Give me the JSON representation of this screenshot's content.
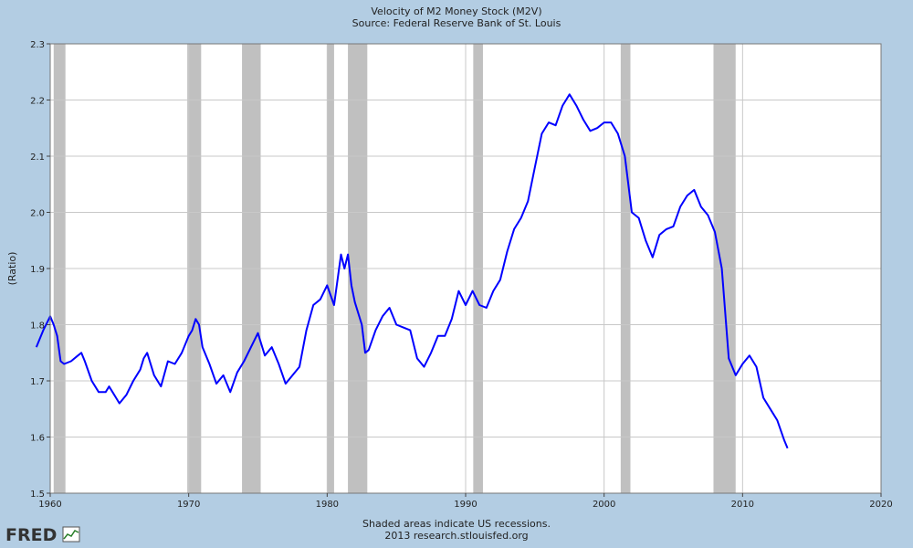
{
  "colors": {
    "background": "#b3cde3",
    "plot_background": "#ffffff",
    "line": "#0000ff",
    "recession": "#c0c0c0",
    "grid": "#c8c8c8"
  },
  "chart_data": {
    "type": "line",
    "title": "Velocity of M2 Money Stock (M2V)",
    "subtitle": "Source: Federal Reserve Bank of St. Louis",
    "ylabel": "(Ratio)",
    "xlabel": "",
    "xlim": [
      1960,
      2020
    ],
    "ylim": [
      1.5,
      2.3
    ],
    "x_ticks": [
      1960,
      1970,
      1980,
      1990,
      2000,
      2010,
      2020
    ],
    "y_ticks": [
      1.5,
      1.6,
      1.7,
      1.8,
      1.9,
      2.0,
      2.1,
      2.2,
      2.3
    ],
    "y_tick_labels": [
      "1.5",
      "1.6",
      "1.7",
      "1.8",
      "1.9",
      "2.0",
      "2.1",
      "2.2",
      "2.3"
    ],
    "grid": true,
    "recessions": [
      [
        1960.25,
        1961.1
      ],
      [
        1969.9,
        1970.9
      ],
      [
        1973.85,
        1975.2
      ],
      [
        1980.0,
        1980.5
      ],
      [
        1981.5,
        1982.9
      ],
      [
        1990.55,
        1991.25
      ],
      [
        2001.2,
        2001.9
      ],
      [
        2007.9,
        2009.5
      ]
    ],
    "series": [
      {
        "x": [
          1959.0,
          1959.5,
          1960.0,
          1960.25,
          1960.5,
          1960.75,
          1961.0,
          1961.5,
          1962.0,
          1962.25,
          1962.5,
          1963.0,
          1963.5,
          1964.0,
          1964.25,
          1964.5,
          1965.0,
          1965.5,
          1966.0,
          1966.5,
          1966.75,
          1967.0,
          1967.5,
          1968.0,
          1968.5,
          1969.0,
          1969.5,
          1970.0,
          1970.25,
          1970.5,
          1970.75,
          1971.0,
          1971.5,
          1972.0,
          1972.5,
          1973.0,
          1973.5,
          1974.0,
          1974.5,
          1975.0,
          1975.5,
          1976.0,
          1976.5,
          1977.0,
          1977.5,
          1978.0,
          1978.5,
          1979.0,
          1979.5,
          1980.0,
          1980.5,
          1981.0,
          1981.25,
          1981.5,
          1981.75,
          1982.0,
          1982.5,
          1982.75,
          1983.0,
          1983.5,
          1984.0,
          1984.5,
          1985.0,
          1985.5,
          1986.0,
          1986.5,
          1987.0,
          1987.5,
          1988.0,
          1988.5,
          1989.0,
          1989.5,
          1990.0,
          1990.5,
          1991.0,
          1991.5,
          1992.0,
          1992.5,
          1993.0,
          1993.5,
          1994.0,
          1994.5,
          1995.0,
          1995.5,
          1996.0,
          1996.5,
          1997.0,
          1997.25,
          1997.5,
          1998.0,
          1998.5,
          1999.0,
          1999.5,
          2000.0,
          2000.5,
          2001.0,
          2001.5,
          2002.0,
          2002.5,
          2003.0,
          2003.5,
          2004.0,
          2004.5,
          2005.0,
          2005.5,
          2006.0,
          2006.5,
          2007.0,
          2007.5,
          2008.0,
          2008.5,
          2009.0,
          2009.5,
          2010.0,
          2010.5,
          2011.0,
          2011.5,
          2012.0,
          2012.5,
          2013.0,
          2013.25
        ],
        "y": [
          1.76,
          1.79,
          1.815,
          1.8,
          1.78,
          1.735,
          1.73,
          1.735,
          1.745,
          1.75,
          1.735,
          1.7,
          1.68,
          1.68,
          1.69,
          1.68,
          1.66,
          1.675,
          1.7,
          1.72,
          1.74,
          1.75,
          1.71,
          1.69,
          1.735,
          1.73,
          1.75,
          1.78,
          1.79,
          1.81,
          1.8,
          1.76,
          1.73,
          1.695,
          1.71,
          1.68,
          1.715,
          1.735,
          1.76,
          1.785,
          1.745,
          1.76,
          1.73,
          1.695,
          1.71,
          1.725,
          1.79,
          1.835,
          1.845,
          1.87,
          1.835,
          1.925,
          1.9,
          1.925,
          1.87,
          1.84,
          1.8,
          1.75,
          1.755,
          1.79,
          1.815,
          1.83,
          1.8,
          1.795,
          1.79,
          1.74,
          1.725,
          1.75,
          1.78,
          1.78,
          1.81,
          1.86,
          1.835,
          1.86,
          1.835,
          1.83,
          1.86,
          1.88,
          1.93,
          1.97,
          1.99,
          2.02,
          2.08,
          2.14,
          2.16,
          2.155,
          2.19,
          2.2,
          2.21,
          2.19,
          2.165,
          2.145,
          2.15,
          2.16,
          2.16,
          2.14,
          2.1,
          2.0,
          1.99,
          1.95,
          1.92,
          1.96,
          1.97,
          1.975,
          2.01,
          2.03,
          2.04,
          2.01,
          1.995,
          1.965,
          1.9,
          1.74,
          1.71,
          1.73,
          1.745,
          1.725,
          1.67,
          1.65,
          1.63,
          1.595,
          1.58
        ]
      }
    ]
  },
  "footer": {
    "note": "Shaded areas indicate US recessions.",
    "source": "2013 research.stlouisfed.org"
  },
  "logo": {
    "text": "FRED"
  }
}
